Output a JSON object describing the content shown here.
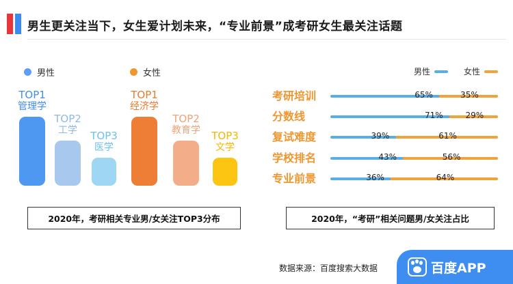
{
  "header": {
    "title": "男生更关注当下，女生爱计划未来，“专业前景”成考研女生最关注话题",
    "colors": {
      "red": "#e6363b",
      "blue": "#3c8cf0"
    }
  },
  "left_panel": {
    "legend": [
      {
        "label": "男性",
        "color": "#5b9ff3"
      },
      {
        "label": "女性",
        "color": "#f0962e"
      }
    ],
    "caption": "2020年，考研相关专业男/女关注TOP3分布"
  },
  "right_panel": {
    "legend": [
      {
        "label": "男性",
        "color": "#5aaee6"
      },
      {
        "label": "女性",
        "color": "#f0a33a"
      }
    ],
    "caption": "2020年，“考研”相关问题男/女关注占比"
  },
  "chart_data": [
    {
      "type": "bar",
      "categories": [
        "男性 TOP1 管理学",
        "男性 TOP2 工学",
        "男性 TOP3 医学",
        "女性 TOP1 经济学",
        "女性 TOP2 教育学",
        "女性 TOP3 文学"
      ],
      "bars": [
        {
          "group": "男性",
          "rank": "TOP1",
          "name": "管理学",
          "rank_order": 1,
          "color": "#4e98f2",
          "label_color": "#3f8ee8"
        },
        {
          "group": "男性",
          "rank": "TOP2",
          "name": "工学",
          "rank_order": 2,
          "color": "#a8c8ee",
          "label_color": "#8fb8ea"
        },
        {
          "group": "男性",
          "rank": "TOP3",
          "name": "医学",
          "rank_order": 3,
          "color": "#9ed6f3",
          "label_color": "#6fc0ea"
        },
        {
          "group": "女性",
          "rank": "TOP1",
          "name": "经济学",
          "rank_order": 1,
          "color": "#ee7d35",
          "label_color": "#ea7a2e"
        },
        {
          "group": "女性",
          "rank": "TOP2",
          "name": "教育学",
          "rank_order": 2,
          "color": "#f3ad88",
          "label_color": "#f0a27a"
        },
        {
          "group": "女性",
          "rank": "TOP3",
          "name": "文学",
          "rank_order": 3,
          "color": "#fbc512",
          "label_color": "#f4b800"
        }
      ],
      "caption": "2020年，考研相关专业男/女关注TOP3分布"
    },
    {
      "type": "bar",
      "orientation": "horizontal-stacked",
      "categories": [
        "考研培训",
        "分数线",
        "复试难度",
        "学校排名",
        "专业前景"
      ],
      "series": [
        {
          "name": "男性",
          "values": [
            65,
            71,
            39,
            43,
            36
          ],
          "labels": [
            "65%",
            "71%",
            "39%",
            "43%",
            "36%"
          ],
          "color": "#5aaee6"
        },
        {
          "name": "女性",
          "values": [
            35,
            29,
            61,
            56,
            64
          ],
          "labels": [
            "35%",
            "29%",
            "61%",
            "56%",
            "64%"
          ],
          "color": "#f0a33a"
        }
      ],
      "xlim": [
        0,
        100
      ],
      "caption": "2020年，“考研”相关问题男/女关注占比"
    }
  ],
  "footer": {
    "source": "数据来源：百度搜索大数据",
    "brand": "百度APP",
    "brand_color": "#3d8ef0"
  }
}
